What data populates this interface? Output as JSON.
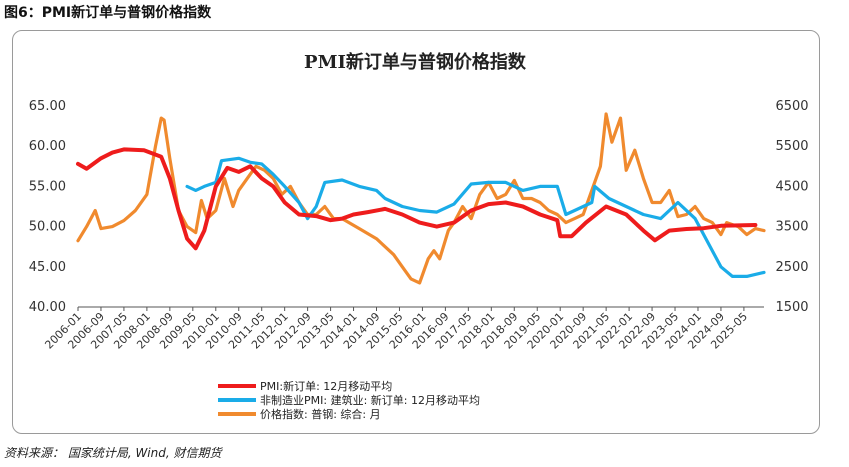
{
  "figure_caption": "图6：PMI新订单与普钢价格指数",
  "source": "资料来源： 国家统计局, Wind, 财信期货",
  "chart_data": {
    "type": "line",
    "title": "PMI新订单与普钢价格指数",
    "ylim_left": [
      40,
      65
    ],
    "ylim_right": [
      1500,
      6500
    ],
    "yticks_left": [
      "65.00",
      "60.00",
      "55.00",
      "50.00",
      "45.00",
      "40.00"
    ],
    "yticks_right": [
      "6500",
      "5500",
      "4500",
      "3500",
      "2500",
      "1500"
    ],
    "x_start": "2006-01",
    "x_end": "2025-12",
    "xticks": [
      "2006-01",
      "2006-09",
      "2007-05",
      "2008-01",
      "2008-09",
      "2009-05",
      "2010-01",
      "2010-09",
      "2011-05",
      "2012-01",
      "2012-09",
      "2013-05",
      "2014-01",
      "2014-09",
      "2015-05",
      "2016-01",
      "2016-09",
      "2017-05",
      "2018-01",
      "2018-09",
      "2019-05",
      "2020-01",
      "2020-09",
      "2021-05",
      "2022-01",
      "2022-09",
      "2023-05",
      "2024-01",
      "2024-09",
      "2025-05"
    ],
    "series": [
      {
        "name": "PMI:新订单: 12月移动平均",
        "axis": "left",
        "color": "#ee1c1c",
        "points": [
          [
            "2006-01",
            57.8
          ],
          [
            "2006-04",
            57.2
          ],
          [
            "2006-09",
            58.5
          ],
          [
            "2007-01",
            59.2
          ],
          [
            "2007-05",
            59.6
          ],
          [
            "2007-12",
            59.5
          ],
          [
            "2008-06",
            58.7
          ],
          [
            "2008-09",
            56
          ],
          [
            "2008-12",
            52
          ],
          [
            "2009-03",
            48.5
          ],
          [
            "2009-06",
            47.3
          ],
          [
            "2009-09",
            49.5
          ],
          [
            "2010-01",
            55
          ],
          [
            "2010-05",
            57.3
          ],
          [
            "2010-09",
            56.8
          ],
          [
            "2011-01",
            57.5
          ],
          [
            "2011-05",
            56
          ],
          [
            "2011-09",
            55
          ],
          [
            "2012-01",
            53
          ],
          [
            "2012-06",
            51.5
          ],
          [
            "2012-12",
            51.3
          ],
          [
            "2013-05",
            50.8
          ],
          [
            "2013-09",
            51
          ],
          [
            "2014-01",
            51.5
          ],
          [
            "2014-06",
            51.8
          ],
          [
            "2014-12",
            52.2
          ],
          [
            "2015-06",
            51.5
          ],
          [
            "2015-12",
            50.5
          ],
          [
            "2016-06",
            50
          ],
          [
            "2016-12",
            50.5
          ],
          [
            "2017-06",
            52
          ],
          [
            "2017-12",
            52.8
          ],
          [
            "2018-06",
            53
          ],
          [
            "2018-12",
            52.5
          ],
          [
            "2019-06",
            51.5
          ],
          [
            "2019-12",
            50.8
          ],
          [
            "2020-01",
            48.8
          ],
          [
            "2020-05",
            48.8
          ],
          [
            "2020-10",
            50.5
          ],
          [
            "2021-05",
            52.5
          ],
          [
            "2021-12",
            51.5
          ],
          [
            "2022-06",
            49.5
          ],
          [
            "2022-10",
            48.3
          ],
          [
            "2023-03",
            49.5
          ],
          [
            "2023-09",
            49.7
          ],
          [
            "2024-03",
            49.8
          ],
          [
            "2024-09",
            50.1
          ],
          [
            "2025-09",
            50.2
          ]
        ]
      },
      {
        "name": "非制造业PMI: 建筑业: 新订单: 12月移动平均",
        "axis": "left",
        "color": "#1aace8",
        "points": [
          [
            "2009-03",
            55
          ],
          [
            "2009-06",
            54.5
          ],
          [
            "2009-09",
            55
          ],
          [
            "2010-01",
            55.5
          ],
          [
            "2010-03",
            58.2
          ],
          [
            "2010-09",
            58.5
          ],
          [
            "2011-01",
            58
          ],
          [
            "2011-05",
            57.8
          ],
          [
            "2011-09",
            56.5
          ],
          [
            "2012-01",
            55
          ],
          [
            "2012-06",
            53
          ],
          [
            "2012-09",
            51
          ],
          [
            "2012-12",
            52.5
          ],
          [
            "2013-03",
            55.5
          ],
          [
            "2013-09",
            55.8
          ],
          [
            "2014-03",
            55
          ],
          [
            "2014-09",
            54.5
          ],
          [
            "2014-12",
            53.5
          ],
          [
            "2015-06",
            52.5
          ],
          [
            "2015-12",
            52
          ],
          [
            "2016-06",
            51.8
          ],
          [
            "2016-12",
            52.8
          ],
          [
            "2017-06",
            55.3
          ],
          [
            "2017-12",
            55.5
          ],
          [
            "2018-06",
            55.5
          ],
          [
            "2018-12",
            54.5
          ],
          [
            "2019-06",
            55
          ],
          [
            "2019-12",
            55
          ],
          [
            "2020-03",
            51.5
          ],
          [
            "2020-06",
            52
          ],
          [
            "2020-12",
            53
          ],
          [
            "2021-01",
            55
          ],
          [
            "2021-06",
            53.5
          ],
          [
            "2021-12",
            52.5
          ],
          [
            "2022-06",
            51.5
          ],
          [
            "2022-12",
            51
          ],
          [
            "2023-06",
            53
          ],
          [
            "2023-12",
            51
          ],
          [
            "2024-03",
            49
          ],
          [
            "2024-09",
            45
          ],
          [
            "2025-01",
            43.8
          ],
          [
            "2025-06",
            43.8
          ],
          [
            "2025-12",
            44.3
          ]
        ]
      },
      {
        "name": "价格指数: 普钢: 综合: 月",
        "axis": "right",
        "color": "#f08a2e",
        "points": [
          [
            "2006-01",
            3150
          ],
          [
            "2006-04",
            3500
          ],
          [
            "2006-07",
            3900
          ],
          [
            "2006-09",
            3450
          ],
          [
            "2007-01",
            3500
          ],
          [
            "2007-05",
            3650
          ],
          [
            "2007-09",
            3900
          ],
          [
            "2008-01",
            4300
          ],
          [
            "2008-04",
            5500
          ],
          [
            "2008-06",
            6200
          ],
          [
            "2008-07",
            6150
          ],
          [
            "2008-09",
            5200
          ],
          [
            "2008-12",
            3900
          ],
          [
            "2009-03",
            3500
          ],
          [
            "2009-06",
            3350
          ],
          [
            "2009-08",
            4150
          ],
          [
            "2009-10",
            3700
          ],
          [
            "2010-01",
            3900
          ],
          [
            "2010-04",
            4700
          ],
          [
            "2010-07",
            4000
          ],
          [
            "2010-09",
            4400
          ],
          [
            "2011-01",
            4800
          ],
          [
            "2011-03",
            5000
          ],
          [
            "2011-06",
            4900
          ],
          [
            "2011-09",
            4700
          ],
          [
            "2011-12",
            4300
          ],
          [
            "2012-03",
            4500
          ],
          [
            "2012-06",
            4100
          ],
          [
            "2012-09",
            3800
          ],
          [
            "2012-12",
            3800
          ],
          [
            "2013-03",
            4000
          ],
          [
            "2013-06",
            3700
          ],
          [
            "2013-09",
            3700
          ],
          [
            "2014-03",
            3450
          ],
          [
            "2014-09",
            3200
          ],
          [
            "2015-03",
            2800
          ],
          [
            "2015-06",
            2500
          ],
          [
            "2015-09",
            2200
          ],
          [
            "2015-12",
            2100
          ],
          [
            "2016-03",
            2700
          ],
          [
            "2016-05",
            2900
          ],
          [
            "2016-07",
            2700
          ],
          [
            "2016-10",
            3400
          ],
          [
            "2016-12",
            3600
          ],
          [
            "2017-03",
            4000
          ],
          [
            "2017-06",
            3700
          ],
          [
            "2017-09",
            4300
          ],
          [
            "2017-12",
            4600
          ],
          [
            "2018-03",
            4200
          ],
          [
            "2018-06",
            4300
          ],
          [
            "2018-09",
            4650
          ],
          [
            "2018-12",
            4200
          ],
          [
            "2019-03",
            4200
          ],
          [
            "2019-06",
            4100
          ],
          [
            "2019-09",
            3900
          ],
          [
            "2019-12",
            3800
          ],
          [
            "2020-03",
            3600
          ],
          [
            "2020-06",
            3700
          ],
          [
            "2020-09",
            3800
          ],
          [
            "2020-12",
            4400
          ],
          [
            "2021-03",
            5000
          ],
          [
            "2021-05",
            6300
          ],
          [
            "2021-07",
            5600
          ],
          [
            "2021-10",
            6200
          ],
          [
            "2021-12",
            4900
          ],
          [
            "2022-03",
            5400
          ],
          [
            "2022-06",
            4700
          ],
          [
            "2022-09",
            4100
          ],
          [
            "2022-12",
            4100
          ],
          [
            "2023-03",
            4400
          ],
          [
            "2023-06",
            3750
          ],
          [
            "2023-09",
            3800
          ],
          [
            "2023-12",
            4000
          ],
          [
            "2024-03",
            3700
          ],
          [
            "2024-06",
            3600
          ],
          [
            "2024-09",
            3300
          ],
          [
            "2024-11",
            3600
          ],
          [
            "2025-03",
            3500
          ],
          [
            "2025-06",
            3300
          ],
          [
            "2025-09",
            3450
          ],
          [
            "2025-12",
            3400
          ]
        ]
      }
    ]
  }
}
